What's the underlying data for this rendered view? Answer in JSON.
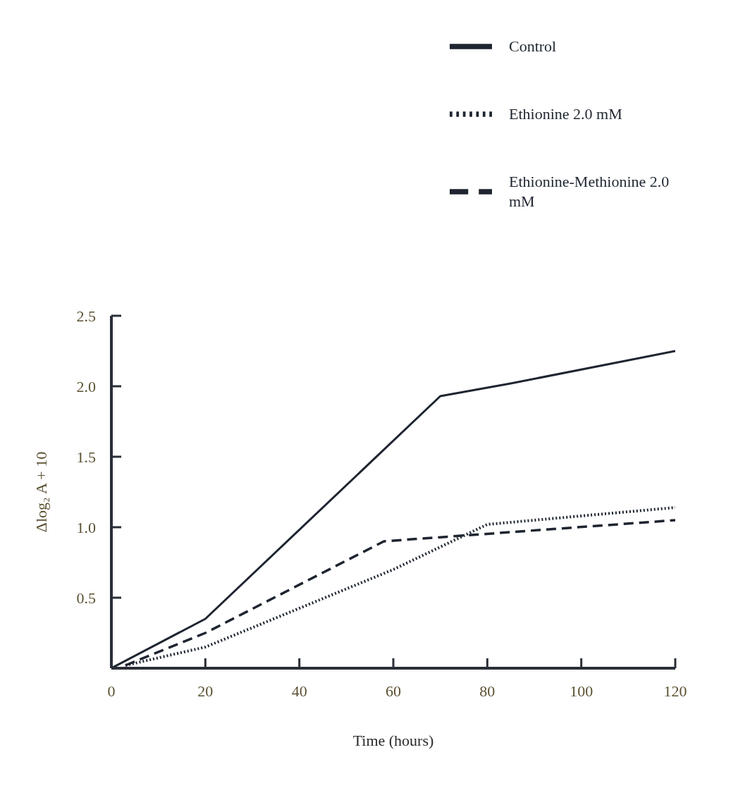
{
  "chart_data": {
    "type": "line",
    "xlabel": "Time (hours)",
    "ylabel": "Δlog₂ A + 10",
    "xlim": [
      0,
      120
    ],
    "xticks": [
      0,
      20,
      40,
      60,
      80,
      100,
      120
    ],
    "ylim": [
      0,
      2.5
    ],
    "yticks": [
      0.5,
      {
        "value": 1,
        "label": "1.0"
      },
      1.5,
      {
        "value": 2,
        "label": "2.0"
      },
      2.5
    ],
    "grid": false,
    "legend": "top right",
    "marker": "none",
    "series": [
      {
        "name": "Control",
        "color": "#1e2530",
        "line_style": "solid",
        "x": [
          0,
          20,
          70,
          85,
          120
        ],
        "values": [
          0,
          0.35,
          1.93,
          2.02,
          2.25
        ]
      },
      {
        "name": "Ethionine 2.0 mM",
        "color": "#1e2530",
        "line_style": "dotted",
        "x": [
          3,
          20,
          60,
          80,
          120
        ],
        "values": [
          0.02,
          0.15,
          0.7,
          1.02,
          1.14
        ]
      },
      {
        "name": "Ethionine-Methionine 2.0 mM",
        "color": "#1e2530",
        "line_style": "dashed",
        "x": [
          3,
          20,
          58,
          120
        ],
        "values": [
          0.02,
          0.25,
          0.9,
          1.05
        ]
      }
    ]
  }
}
